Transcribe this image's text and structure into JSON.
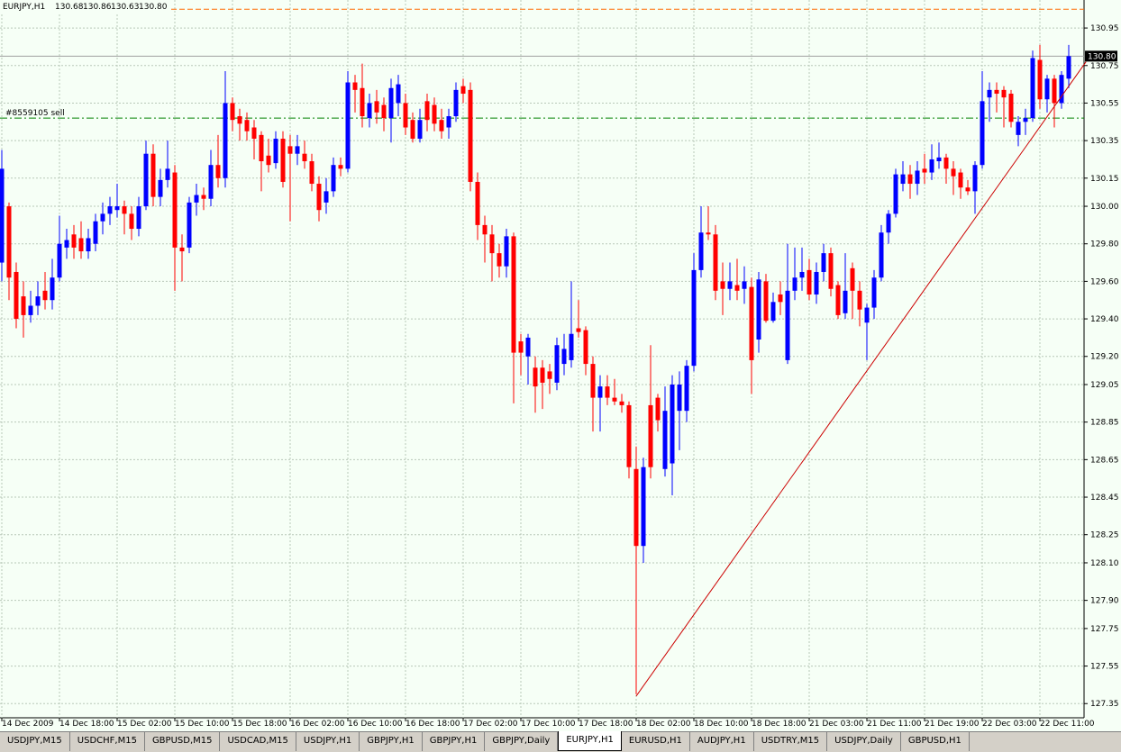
{
  "chart_data": {
    "type": "candlestick",
    "header": {
      "symbol": "EURJPY,H1",
      "ohlc": [
        "130.68",
        "130.86",
        "130.63",
        "130.80"
      ]
    },
    "categories": [
      "14 Dec 2009",
      null,
      null,
      null,
      null,
      null,
      null,
      null,
      "14 Dec 18:00",
      null,
      null,
      null,
      null,
      null,
      null,
      null,
      "15 Dec 02:00",
      null,
      null,
      null,
      null,
      null,
      null,
      null,
      "15 Dec 10:00",
      null,
      null,
      null,
      null,
      null,
      null,
      null,
      "15 Dec 18:00",
      null,
      null,
      null,
      null,
      null,
      null,
      null,
      "16 Dec 02:00",
      null,
      null,
      null,
      null,
      null,
      null,
      null,
      "16 Dec 10:00",
      null,
      null,
      null,
      null,
      null,
      null,
      null,
      "16 Dec 18:00",
      null,
      null,
      null,
      null,
      null,
      null,
      null,
      "17 Dec 02:00",
      null,
      null,
      null,
      null,
      null,
      null,
      null,
      "17 Dec 10:00",
      null,
      null,
      null,
      null,
      null,
      null,
      null,
      "17 Dec 18:00",
      null,
      null,
      null,
      null,
      null,
      null,
      null,
      "18 Dec 02:00",
      null,
      null,
      null,
      null,
      null,
      null,
      null,
      "18 Dec 10:00",
      null,
      null,
      null,
      null,
      null,
      null,
      null,
      "18 Dec 18:00",
      null,
      null,
      null,
      null,
      null,
      null,
      null,
      "21 Dec 03:00",
      null,
      null,
      null,
      null,
      null,
      null,
      null,
      "21 Dec 11:00",
      null,
      null,
      null,
      null,
      null,
      null,
      null,
      "21 Dec 19:00",
      null,
      null,
      null,
      null,
      null,
      null,
      null,
      "22 Dec 03:00",
      null,
      null,
      null,
      null,
      null,
      null,
      null,
      "22 Dec 11:00",
      null,
      null,
      null,
      null
    ],
    "open": [
      129.7,
      130.0,
      129.65,
      129.52,
      129.42,
      129.47,
      129.55,
      129.5,
      129.62,
      129.78,
      129.85,
      129.83,
      129.76,
      129.8,
      129.92,
      129.96,
      129.98,
      130.0,
      129.96,
      129.88,
      130.0,
      130.28,
      130.05,
      130.14,
      130.18,
      129.78,
      129.78,
      130.02,
      130.06,
      130.04,
      130.22,
      130.15,
      130.55,
      130.48,
      130.46,
      130.42,
      130.38,
      130.27,
      130.23,
      130.36,
      130.32,
      130.28,
      130.28,
      130.24,
      130.12,
      130.02,
      130.08,
      130.22,
      130.2,
      130.66,
      130.63,
      130.47,
      130.56,
      130.54,
      130.47,
      130.55,
      130.55,
      130.46,
      130.36,
      130.56,
      130.54,
      130.46,
      130.42,
      130.48,
      130.64,
      130.62,
      130.13,
      129.9,
      129.85,
      129.75,
      129.68,
      129.84,
      129.28,
      129.2,
      129.14,
      129.14,
      129.12,
      129.06,
      129.16,
      129.18,
      129.35,
      129.34,
      129.16,
      128.98,
      129.04,
      128.98,
      128.96,
      128.94,
      128.6,
      128.19,
      128.94,
      128.98,
      128.6,
      128.63,
      128.91,
      128.91,
      129.15,
      129.66,
      129.86,
      129.85,
      129.6,
      129.56,
      129.58,
      129.56,
      129.57,
      129.29,
      129.6,
      129.39,
      129.53,
      129.18,
      129.55,
      129.62,
      129.66,
      129.53,
      129.65,
      129.75,
      129.58,
      129.43,
      129.67,
      129.55,
      129.38,
      129.46,
      129.62,
      129.86,
      129.96,
      130.12,
      130.17,
      130.12,
      130.2,
      130.18,
      130.24,
      130.26,
      130.2,
      130.18,
      130.1,
      130.08,
      130.22,
      130.58,
      130.62,
      130.62,
      130.6,
      130.38,
      130.45,
      130.47,
      130.78,
      130.57,
      130.68,
      130.55,
      130.68
    ],
    "high": [
      130.3,
      130.02,
      129.7,
      129.6,
      129.55,
      129.6,
      129.65,
      129.72,
      129.95,
      129.88,
      129.9,
      129.92,
      129.88,
      129.96,
      130.02,
      130.05,
      130.12,
      130.03,
      130.0,
      130.05,
      130.35,
      130.33,
      130.2,
      130.35,
      130.22,
      129.85,
      130.05,
      130.12,
      130.1,
      130.3,
      130.38,
      130.72,
      130.58,
      130.52,
      130.5,
      130.46,
      130.4,
      130.36,
      130.4,
      130.4,
      130.38,
      130.38,
      130.35,
      130.28,
      130.16,
      130.15,
      130.26,
      130.26,
      130.72,
      130.7,
      130.76,
      130.6,
      130.62,
      130.58,
      130.68,
      130.7,
      130.6,
      130.5,
      130.52,
      130.6,
      130.58,
      130.52,
      130.52,
      130.66,
      130.68,
      130.66,
      130.18,
      129.95,
      129.9,
      129.8,
      129.88,
      129.86,
      129.32,
      129.32,
      129.2,
      129.18,
      129.16,
      129.3,
      129.32,
      129.6,
      129.5,
      129.36,
      129.2,
      129.1,
      129.1,
      129.08,
      129.0,
      128.96,
      128.72,
      128.66,
      129.26,
      129.0,
      129.04,
      129.1,
      129.12,
      129.18,
      129.75,
      130.0,
      130.0,
      129.9,
      129.7,
      129.7,
      129.72,
      129.68,
      129.62,
      129.65,
      129.64,
      129.54,
      129.6,
      129.8,
      129.78,
      129.78,
      129.72,
      129.7,
      129.8,
      129.78,
      129.6,
      129.75,
      129.7,
      129.6,
      129.48,
      129.66,
      129.9,
      129.98,
      130.2,
      130.24,
      130.22,
      130.24,
      130.28,
      130.33,
      130.34,
      130.28,
      130.24,
      130.2,
      130.14,
      130.24,
      130.72,
      130.66,
      130.66,
      130.64,
      130.62,
      130.48,
      130.52,
      130.83,
      130.86,
      130.7,
      130.7,
      130.72,
      130.86
    ],
    "low": [
      129.6,
      129.5,
      129.35,
      129.3,
      129.38,
      129.42,
      129.45,
      129.45,
      129.6,
      129.72,
      129.72,
      129.72,
      129.72,
      129.76,
      129.85,
      129.9,
      129.94,
      129.85,
      129.82,
      129.84,
      129.98,
      130.0,
      130.0,
      130.1,
      129.55,
      129.6,
      129.75,
      129.95,
      129.98,
      130.0,
      130.1,
      130.1,
      130.4,
      130.35,
      130.35,
      130.25,
      130.08,
      130.18,
      130.2,
      130.1,
      129.92,
      130.22,
      130.2,
      130.08,
      129.92,
      129.96,
      130.05,
      130.16,
      130.18,
      130.5,
      130.42,
      130.42,
      130.44,
      130.4,
      130.34,
      130.48,
      130.38,
      130.34,
      130.34,
      130.4,
      130.4,
      130.36,
      130.36,
      130.45,
      130.55,
      130.08,
      129.82,
      129.7,
      129.6,
      129.62,
      129.62,
      128.95,
      129.1,
      129.05,
      128.9,
      128.92,
      129.0,
      129.02,
      129.1,
      129.14,
      129.3,
      129.1,
      128.8,
      128.8,
      128.94,
      128.94,
      128.9,
      128.55,
      127.4,
      128.1,
      128.55,
      128.8,
      128.56,
      128.46,
      128.7,
      128.85,
      129.12,
      129.62,
      129.82,
      129.5,
      129.42,
      129.5,
      129.5,
      129.48,
      129.0,
      129.22,
      129.38,
      129.38,
      129.42,
      129.16,
      129.5,
      129.55,
      129.5,
      129.48,
      129.6,
      129.52,
      129.4,
      129.4,
      129.4,
      129.36,
      129.18,
      129.4,
      129.6,
      129.8,
      129.94,
      130.08,
      130.04,
      130.06,
      130.12,
      130.14,
      130.2,
      130.12,
      130.06,
      130.04,
      130.06,
      129.96,
      130.2,
      130.45,
      130.5,
      130.42,
      130.42,
      130.32,
      130.38,
      130.45,
      130.52,
      130.5,
      130.42,
      130.52,
      130.63
    ],
    "close": [
      130.2,
      129.62,
      129.4,
      129.42,
      129.47,
      129.52,
      129.5,
      129.62,
      129.8,
      129.82,
      129.78,
      129.76,
      129.83,
      129.92,
      129.96,
      130.0,
      130.0,
      129.96,
      129.88,
      130.0,
      130.28,
      130.05,
      130.14,
      130.2,
      129.78,
      129.76,
      130.02,
      130.06,
      130.04,
      130.22,
      130.15,
      130.55,
      130.46,
      130.44,
      130.4,
      130.36,
      130.24,
      130.22,
      130.36,
      130.13,
      130.28,
      130.32,
      130.24,
      130.12,
      129.98,
      130.08,
      130.22,
      130.2,
      130.66,
      130.62,
      130.48,
      130.55,
      130.5,
      130.47,
      130.63,
      130.65,
      130.42,
      130.36,
      130.46,
      130.46,
      130.44,
      130.4,
      130.48,
      130.62,
      130.6,
      130.13,
      129.9,
      129.85,
      129.75,
      129.68,
      129.84,
      129.22,
      129.22,
      129.3,
      129.04,
      129.06,
      129.08,
      129.26,
      129.24,
      129.32,
      129.33,
      129.16,
      128.98,
      129.04,
      128.98,
      128.96,
      128.94,
      128.61,
      128.19,
      128.61,
      128.61,
      128.86,
      128.91,
      129.05,
      129.05,
      129.15,
      129.66,
      129.86,
      129.85,
      129.55,
      129.56,
      129.6,
      129.55,
      129.6,
      129.18,
      129.61,
      129.39,
      129.49,
      129.49,
      129.55,
      129.62,
      129.65,
      129.53,
      129.65,
      129.75,
      129.56,
      129.42,
      129.55,
      129.55,
      129.45,
      129.46,
      129.62,
      129.86,
      129.96,
      130.17,
      130.17,
      130.12,
      130.19,
      130.18,
      130.25,
      130.26,
      130.2,
      130.16,
      130.1,
      130.08,
      130.22,
      130.56,
      130.62,
      130.6,
      130.58,
      130.45,
      130.45,
      130.47,
      130.79,
      130.57,
      130.68,
      130.55,
      130.7,
      130.8
    ],
    "up_color": "#0000ff",
    "down_color": "#ff0000",
    "ylim": [
      127.26,
      131.08
    ],
    "yticks": [
      130.95,
      130.75,
      130.55,
      130.35,
      130.15,
      {
        "value": 130,
        "label": "130.00"
      },
      {
        "value": 129.8,
        "label": "129.80"
      },
      {
        "value": 129.6,
        "label": "129.60"
      },
      {
        "value": 129.4,
        "label": "129.40"
      },
      {
        "value": 129.2,
        "label": "129.20"
      },
      129.05,
      128.85,
      128.65,
      128.45,
      128.25,
      {
        "value": 128.1,
        "label": "128.10"
      },
      {
        "value": 127.9,
        "label": "127.90"
      },
      127.75,
      127.55,
      127.35
    ],
    "grid": true,
    "current_price": {
      "value": 130.8,
      "label": "130.80"
    },
    "order": {
      "label": "#8559105 sell",
      "value": 130.47,
      "color": "#008000"
    },
    "level_line": {
      "value": 131.05,
      "color": "#ff6a00"
    },
    "trendline": {
      "x": [
        88,
        150.4
      ],
      "y": [
        127.39,
        130.77
      ],
      "color": "#cc0000"
    }
  },
  "tabs": [
    {
      "label": "USDJPY,M15"
    },
    {
      "label": "USDCHF,M15"
    },
    {
      "label": "GBPUSD,M15"
    },
    {
      "label": "USDCAD,M15"
    },
    {
      "label": "USDJPY,H1"
    },
    {
      "label": "GBPJPY,H1"
    },
    {
      "label": "GBPJPY,H1"
    },
    {
      "label": "GBPJPY,Daily"
    },
    {
      "label": "EURJPY,H1",
      "active": true
    },
    {
      "label": "EURUSD,H1"
    },
    {
      "label": "AUDJPY,H1"
    },
    {
      "label": "USDTRY,M15"
    },
    {
      "label": "USDJPY,Daily"
    },
    {
      "label": "GBPUSD,H1"
    }
  ]
}
